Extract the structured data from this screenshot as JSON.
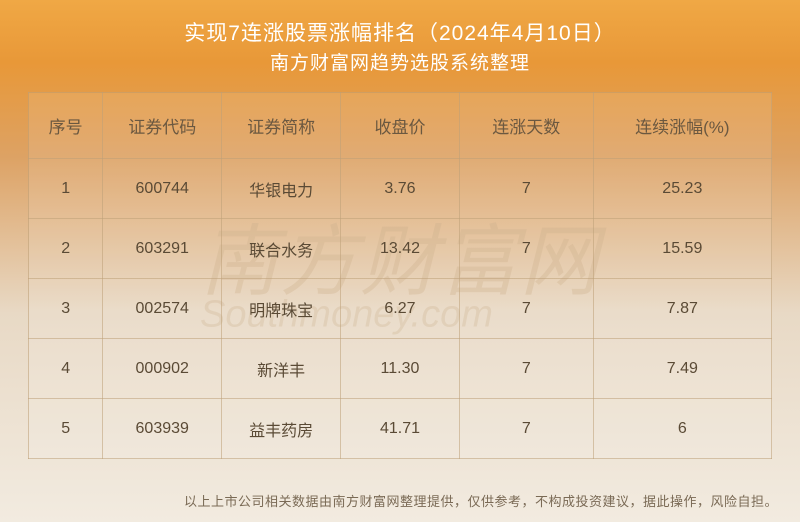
{
  "header": {
    "title_main": "实现7连涨股票涨幅排名（2024年4月10日）",
    "title_sub": "南方财富网趋势选股系统整理"
  },
  "watermark": {
    "main": "南方财富网",
    "sub": "Southmoney.com"
  },
  "table": {
    "columns": [
      "序号",
      "证券代码",
      "证券简称",
      "收盘价",
      "连涨天数",
      "连续涨幅(%)"
    ],
    "column_widths_pct": [
      10,
      16,
      16,
      16,
      18,
      24
    ],
    "rows": [
      [
        "1",
        "600744",
        "华银电力",
        "3.76",
        "7",
        "25.23"
      ],
      [
        "2",
        "603291",
        "联合水务",
        "13.42",
        "7",
        "15.59"
      ],
      [
        "3",
        "002574",
        "明牌珠宝",
        "6.27",
        "7",
        "7.87"
      ],
      [
        "4",
        "000902",
        "新洋丰",
        "11.30",
        "7",
        "7.49"
      ],
      [
        "5",
        "603939",
        "益丰药房",
        "41.71",
        "7",
        "6"
      ]
    ]
  },
  "footer": {
    "disclaimer": "以上上市公司相关数据由南方财富网整理提供，仅供参考，不构成投资建议，据此操作，风险自担。"
  },
  "style": {
    "bg_gradient_top": "#f0a845",
    "bg_gradient_mid": "#dda264",
    "bg_gradient_bottom": "#f2ebe0",
    "border_color": "rgba(190,160,120,0.55)",
    "text_color": "#5a4a35",
    "header_text_color": "#ffffff",
    "title_fontsize_pt": 21,
    "cell_fontsize_pt": 16,
    "footer_fontsize_pt": 13
  }
}
